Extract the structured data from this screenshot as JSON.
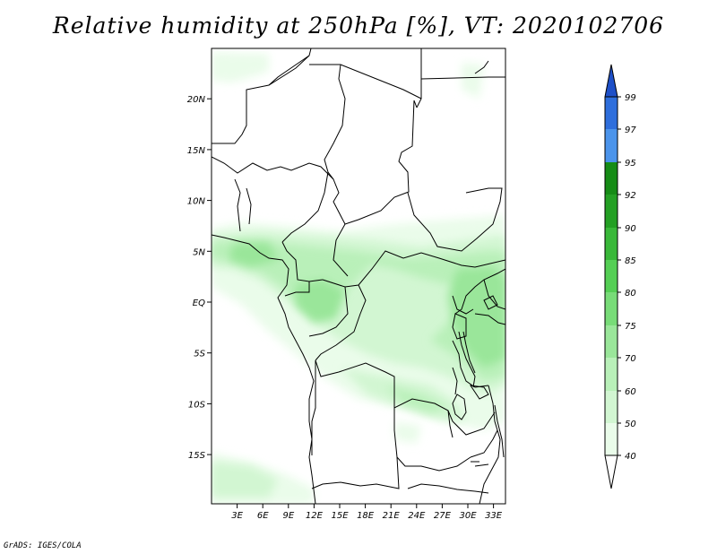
{
  "title": "Relative humidity at 250hPa [%], VT: 2020102706",
  "credit": "GrADS: IGES/COLA",
  "map": {
    "lat_labels": [
      "20N",
      "15N",
      "10N",
      "5N",
      "EQ",
      "5S",
      "10S",
      "15S"
    ],
    "lon_labels": [
      "3E",
      "6E",
      "9E",
      "12E",
      "15E",
      "18E",
      "21E",
      "24E",
      "27E",
      "30E",
      "33E"
    ],
    "lat_values": [
      20,
      15,
      10,
      5,
      0,
      -5,
      -10,
      -15
    ],
    "lon_values": [
      3,
      6,
      9,
      12,
      15,
      18,
      21,
      24,
      27,
      30,
      33
    ]
  },
  "colorbar": {
    "levels": [
      "99",
      "97",
      "95",
      "92",
      "90",
      "85",
      "80",
      "75",
      "70",
      "60",
      "50",
      "40"
    ],
    "colors": {
      "99-100": "#1e50c8",
      "97-99": "#2e6edc",
      "95-97": "#4b94eb",
      "92-95": "#168c16",
      "90-92": "#24a024",
      "85-90": "#39b839",
      "80-85": "#55cf55",
      "75-80": "#78dc78",
      "70-75": "#9ae69a",
      "60-70": "#b9f0b9",
      "50-60": "#d2f6d2",
      "40-50": "#eafcea"
    }
  }
}
